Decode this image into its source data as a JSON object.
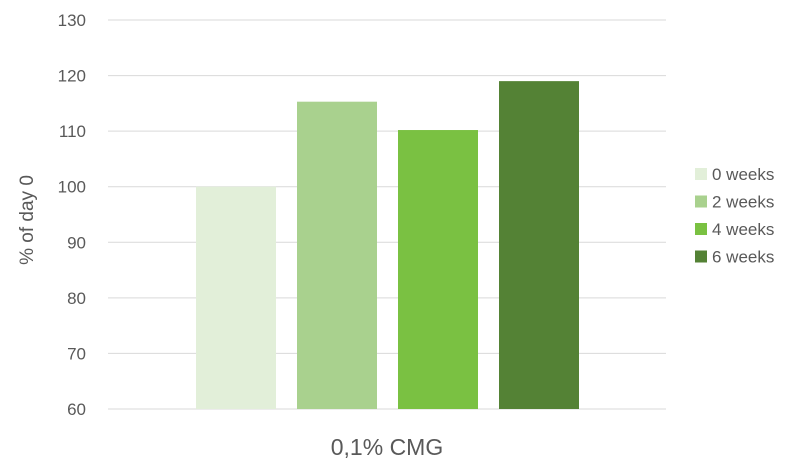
{
  "chart_data": {
    "type": "bar",
    "categories": [
      "0,1% CMG"
    ],
    "series": [
      {
        "name": "0 weeks",
        "values": [
          100
        ],
        "color": "#e2efd9"
      },
      {
        "name": "2 weeks",
        "values": [
          115.3
        ],
        "color": "#a9d18e"
      },
      {
        "name": "4 weeks",
        "values": [
          110.2
        ],
        "color": "#7ac142"
      },
      {
        "name": "6 weeks",
        "values": [
          119
        ],
        "color": "#548235"
      }
    ],
    "ylabel": "% of day 0",
    "ylim": [
      60,
      130
    ],
    "yticks": [
      "60",
      "70",
      "80",
      "90",
      "100",
      "110",
      "120",
      "130"
    ],
    "grid": true,
    "legend": "right"
  }
}
